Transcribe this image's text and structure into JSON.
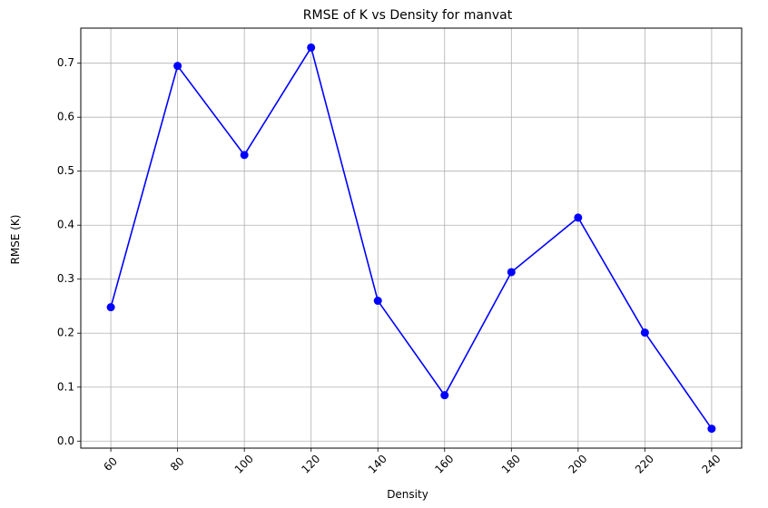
{
  "chart_data": {
    "type": "line",
    "title": "RMSE of K vs Density for manvat",
    "xlabel": "Density",
    "ylabel": "RMSE (K)",
    "x": [
      60,
      80,
      100,
      120,
      140,
      160,
      180,
      200,
      220,
      240
    ],
    "xticks": [
      "60",
      "80",
      "100",
      "120",
      "140",
      "160",
      "180",
      "200",
      "220",
      "240"
    ],
    "yticks": [
      "0.0",
      "0.1",
      "0.2",
      "0.3",
      "0.4",
      "0.5",
      "0.6",
      "0.7"
    ],
    "ylim": [
      -0.013,
      0.765
    ],
    "xlim": [
      51,
      249
    ],
    "grid": true,
    "xtick_rotation_deg": 45,
    "series": [
      {
        "values": [
          0.248,
          0.695,
          0.53,
          0.729,
          0.26,
          0.085,
          0.313,
          0.414,
          0.201,
          0.023
        ],
        "color": "#0000ff",
        "marker": "circle"
      }
    ]
  }
}
